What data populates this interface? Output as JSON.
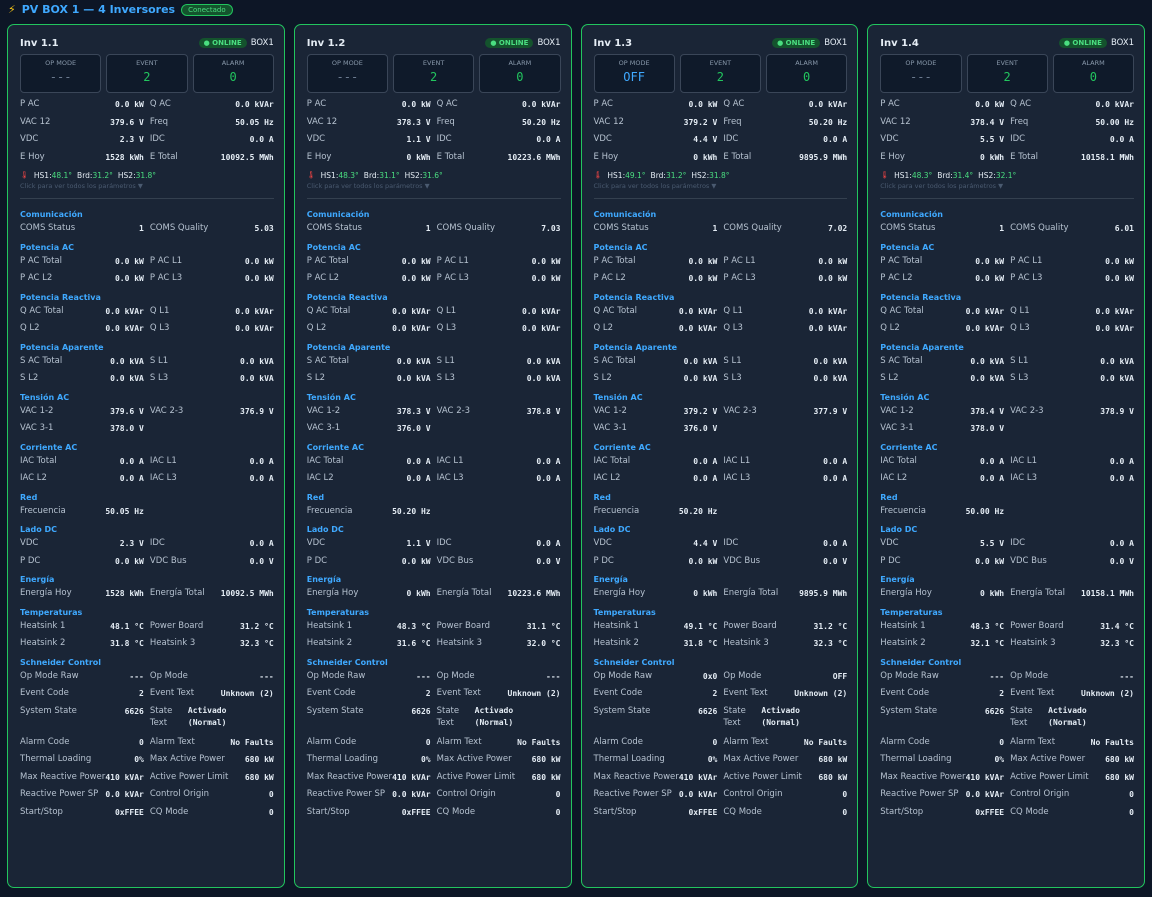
{
  "header": {
    "title": "PV BOX 1 — 4 Inversores",
    "status": "Conectado",
    "icon": "lightning-bolt-icon"
  },
  "labels": {
    "online": "● ONLINE",
    "op_mode": "OP MODE",
    "event": "EVENT",
    "alarm": "ALARM",
    "p_ac": "P AC",
    "q_ac": "Q AC",
    "vac12": "VAC 12",
    "freq": "Freq",
    "vdc": "VDC",
    "idc": "IDC",
    "e_hoy": "E Hoy",
    "e_total": "E Total",
    "hs1": "HS1:",
    "brd": "Brd:",
    "hs2": "HS2:",
    "hint": "Click para ver todos los parámetros ▼",
    "sec_com": "Comunicación",
    "coms_status": "COMS Status",
    "coms_quality": "COMS Quality",
    "sec_pac": "Potencia AC",
    "pac_total": "P AC Total",
    "pac_l1": "P AC L1",
    "pac_l2": "P AC L2",
    "pac_l3": "P AC L3",
    "sec_qac": "Potencia Reactiva",
    "qac_total": "Q AC Total",
    "q_l1": "Q L1",
    "q_l2": "Q L2",
    "q_l3": "Q L3",
    "sec_sac": "Potencia Aparente",
    "sac_total": "S AC Total",
    "s_l1": "S L1",
    "s_l2": "S L2",
    "s_l3": "S L3",
    "sec_vac": "Tensión AC",
    "vac_12": "VAC 1-2",
    "vac_23": "VAC 2-3",
    "vac_31": "VAC 3-1",
    "sec_iac": "Corriente AC",
    "iac_total": "IAC Total",
    "iac_l1": "IAC L1",
    "iac_l2": "IAC L2",
    "iac_l3": "IAC L3",
    "sec_red": "Red",
    "frecuencia": "Frecuencia",
    "sec_dc": "Lado DC",
    "p_dc": "P DC",
    "vdc_bus": "VDC Bus",
    "sec_en": "Energía",
    "en_hoy": "Energía Hoy",
    "en_total": "Energía Total",
    "sec_temp": "Temperaturas",
    "heatsink1": "Heatsink 1",
    "power_board": "Power Board",
    "heatsink2": "Heatsink 2",
    "heatsink3": "Heatsink 3",
    "sec_sch": "Schneider Control",
    "op_mode_raw": "Op Mode Raw",
    "op_mode2": "Op Mode",
    "event_code": "Event Code",
    "event_text": "Event Text",
    "system_state": "System State",
    "state_text": "State Text",
    "alarm_code": "Alarm Code",
    "alarm_text": "Alarm Text",
    "thermal_loading": "Thermal Loading",
    "max_active_power": "Max Active Power",
    "max_reactive_power": "Max Reactive Power",
    "active_power_limit": "Active Power Limit",
    "reactive_power_sp": "Reactive Power SP",
    "control_origin": "Control Origin",
    "start_stop": "Start/Stop",
    "cq_mode": "CQ Mode"
  },
  "inverters": [
    {
      "name": "Inv 1.1",
      "box": "BOX1",
      "op_mode": "---",
      "event": "2",
      "alarm": "0",
      "p_ac": "0.0 kW",
      "q_ac": "0.0 kVAr",
      "vac12": "379.6 V",
      "freq": "50.05 Hz",
      "vdc": "2.3 V",
      "idc": "0.0 A",
      "e_hoy": "1528 kWh",
      "e_total": "10092.5 MWh",
      "hs1": "48.1°",
      "brd": "31.2°",
      "hs2": "31.8°",
      "coms_status": "1",
      "coms_quality": "5.03",
      "pac_total": "0.0 kW",
      "pac_l1": "0.0 kW",
      "pac_l2": "0.0 kW",
      "pac_l3": "0.0 kW",
      "qac_total": "0.0 kVAr",
      "q_l1": "0.0 kVAr",
      "q_l2": "0.0 kVAr",
      "q_l3": "0.0 kVAr",
      "sac_total": "0.0 kVA",
      "s_l1": "0.0 kVA",
      "s_l2": "0.0 kVA",
      "s_l3": "0.0 kVA",
      "vac_12": "379.6 V",
      "vac_23": "376.9 V",
      "vac_31": "378.0 V",
      "iac_total": "0.0 A",
      "iac_l1": "0.0 A",
      "iac_l2": "0.0 A",
      "iac_l3": "0.0 A",
      "frecuencia": "50.05 Hz",
      "dc_vdc": "2.3 V",
      "dc_idc": "0.0 A",
      "p_dc": "0.0 kW",
      "vdc_bus": "0.0 V",
      "en_hoy": "1528 kWh",
      "en_total": "10092.5 MWh",
      "heatsink1": "48.1 °C",
      "power_board": "31.2 °C",
      "heatsink2": "31.8 °C",
      "heatsink3": "32.3 °C",
      "op_mode_raw": "---",
      "op_mode2": "---",
      "event_code": "2",
      "event_text": "Unknown (2)",
      "system_state": "6626",
      "state_text_1": "Activado",
      "state_text_2": "(Normal)",
      "alarm_code": "0",
      "alarm_text": "No Faults",
      "thermal_loading": "0%",
      "max_active_power": "680 kW",
      "max_reactive_power": "410 kVAr",
      "active_power_limit": "680 kW",
      "reactive_power_sp": "0.0 kVAr",
      "control_origin": "0",
      "start_stop": "0xFFEE",
      "cq_mode": "0"
    },
    {
      "name": "Inv 1.2",
      "box": "BOX1",
      "op_mode": "---",
      "event": "2",
      "alarm": "0",
      "p_ac": "0.0 kW",
      "q_ac": "0.0 kVAr",
      "vac12": "378.3 V",
      "freq": "50.20 Hz",
      "vdc": "1.1 V",
      "idc": "0.0 A",
      "e_hoy": "0 kWh",
      "e_total": "10223.6 MWh",
      "hs1": "48.3°",
      "brd": "31.1°",
      "hs2": "31.6°",
      "coms_status": "1",
      "coms_quality": "7.03",
      "pac_total": "0.0 kW",
      "pac_l1": "0.0 kW",
      "pac_l2": "0.0 kW",
      "pac_l3": "0.0 kW",
      "qac_total": "0.0 kVAr",
      "q_l1": "0.0 kVAr",
      "q_l2": "0.0 kVAr",
      "q_l3": "0.0 kVAr",
      "sac_total": "0.0 kVA",
      "s_l1": "0.0 kVA",
      "s_l2": "0.0 kVA",
      "s_l3": "0.0 kVA",
      "vac_12": "378.3 V",
      "vac_23": "378.8 V",
      "vac_31": "376.0 V",
      "iac_total": "0.0 A",
      "iac_l1": "0.0 A",
      "iac_l2": "0.0 A",
      "iac_l3": "0.0 A",
      "frecuencia": "50.20 Hz",
      "dc_vdc": "1.1 V",
      "dc_idc": "0.0 A",
      "p_dc": "0.0 kW",
      "vdc_bus": "0.0 V",
      "en_hoy": "0 kWh",
      "en_total": "10223.6 MWh",
      "heatsink1": "48.3 °C",
      "power_board": "31.1 °C",
      "heatsink2": "31.6 °C",
      "heatsink3": "32.0 °C",
      "op_mode_raw": "---",
      "op_mode2": "---",
      "event_code": "2",
      "event_text": "Unknown (2)",
      "system_state": "6626",
      "state_text_1": "Activado",
      "state_text_2": "(Normal)",
      "alarm_code": "0",
      "alarm_text": "No Faults",
      "thermal_loading": "0%",
      "max_active_power": "680 kW",
      "max_reactive_power": "410 kVAr",
      "active_power_limit": "680 kW",
      "reactive_power_sp": "0.0 kVAr",
      "control_origin": "0",
      "start_stop": "0xFFEE",
      "cq_mode": "0"
    },
    {
      "name": "Inv 1.3",
      "box": "BOX1",
      "op_mode": "OFF",
      "event": "2",
      "alarm": "0",
      "p_ac": "0.0 kW",
      "q_ac": "0.0 kVAr",
      "vac12": "379.2 V",
      "freq": "50.20 Hz",
      "vdc": "4.4 V",
      "idc": "0.0 A",
      "e_hoy": "0 kWh",
      "e_total": "9895.9 MWh",
      "hs1": "49.1°",
      "brd": "31.2°",
      "hs2": "31.8°",
      "coms_status": "1",
      "coms_quality": "7.02",
      "pac_total": "0.0 kW",
      "pac_l1": "0.0 kW",
      "pac_l2": "0.0 kW",
      "pac_l3": "0.0 kW",
      "qac_total": "0.0 kVAr",
      "q_l1": "0.0 kVAr",
      "q_l2": "0.0 kVAr",
      "q_l3": "0.0 kVAr",
      "sac_total": "0.0 kVA",
      "s_l1": "0.0 kVA",
      "s_l2": "0.0 kVA",
      "s_l3": "0.0 kVA",
      "vac_12": "379.2 V",
      "vac_23": "377.9 V",
      "vac_31": "376.0 V",
      "iac_total": "0.0 A",
      "iac_l1": "0.0 A",
      "iac_l2": "0.0 A",
      "iac_l3": "0.0 A",
      "frecuencia": "50.20 Hz",
      "dc_vdc": "4.4 V",
      "dc_idc": "0.0 A",
      "p_dc": "0.0 kW",
      "vdc_bus": "0.0 V",
      "en_hoy": "0 kWh",
      "en_total": "9895.9 MWh",
      "heatsink1": "49.1 °C",
      "power_board": "31.2 °C",
      "heatsink2": "31.8 °C",
      "heatsink3": "32.3 °C",
      "op_mode_raw": "0x0",
      "op_mode2": "OFF",
      "event_code": "2",
      "event_text": "Unknown (2)",
      "system_state": "6626",
      "state_text_1": "Activado",
      "state_text_2": "(Normal)",
      "alarm_code": "0",
      "alarm_text": "No Faults",
      "thermal_loading": "0%",
      "max_active_power": "680 kW",
      "max_reactive_power": "410 kVAr",
      "active_power_limit": "680 kW",
      "reactive_power_sp": "0.0 kVAr",
      "control_origin": "0",
      "start_stop": "0xFFEE",
      "cq_mode": "0"
    },
    {
      "name": "Inv 1.4",
      "box": "BOX1",
      "op_mode": "---",
      "event": "2",
      "alarm": "0",
      "p_ac": "0.0 kW",
      "q_ac": "0.0 kVAr",
      "vac12": "378.4 V",
      "freq": "50.00 Hz",
      "vdc": "5.5 V",
      "idc": "0.0 A",
      "e_hoy": "0 kWh",
      "e_total": "10158.1 MWh",
      "hs1": "48.3°",
      "brd": "31.4°",
      "hs2": "32.1°",
      "coms_status": "1",
      "coms_quality": "6.01",
      "pac_total": "0.0 kW",
      "pac_l1": "0.0 kW",
      "pac_l2": "0.0 kW",
      "pac_l3": "0.0 kW",
      "qac_total": "0.0 kVAr",
      "q_l1": "0.0 kVAr",
      "q_l2": "0.0 kVAr",
      "q_l3": "0.0 kVAr",
      "sac_total": "0.0 kVA",
      "s_l1": "0.0 kVA",
      "s_l2": "0.0 kVA",
      "s_l3": "0.0 kVA",
      "vac_12": "378.4 V",
      "vac_23": "378.9 V",
      "vac_31": "378.0 V",
      "iac_total": "0.0 A",
      "iac_l1": "0.0 A",
      "iac_l2": "0.0 A",
      "iac_l3": "0.0 A",
      "frecuencia": "50.00 Hz",
      "dc_vdc": "5.5 V",
      "dc_idc": "0.0 A",
      "p_dc": "0.0 kW",
      "vdc_bus": "0.0 V",
      "en_hoy": "0 kWh",
      "en_total": "10158.1 MWh",
      "heatsink1": "48.3 °C",
      "power_board": "31.4 °C",
      "heatsink2": "32.1 °C",
      "heatsink3": "32.3 °C",
      "op_mode_raw": "---",
      "op_mode2": "---",
      "event_code": "2",
      "event_text": "Unknown (2)",
      "system_state": "6626",
      "state_text_1": "Activado",
      "state_text_2": "(Normal)",
      "alarm_code": "0",
      "alarm_text": "No Faults",
      "thermal_loading": "0%",
      "max_active_power": "680 kW",
      "max_reactive_power": "410 kVAr",
      "active_power_limit": "680 kW",
      "reactive_power_sp": "0.0 kVAr",
      "control_origin": "0",
      "start_stop": "0xFFEE",
      "cq_mode": "0"
    }
  ]
}
